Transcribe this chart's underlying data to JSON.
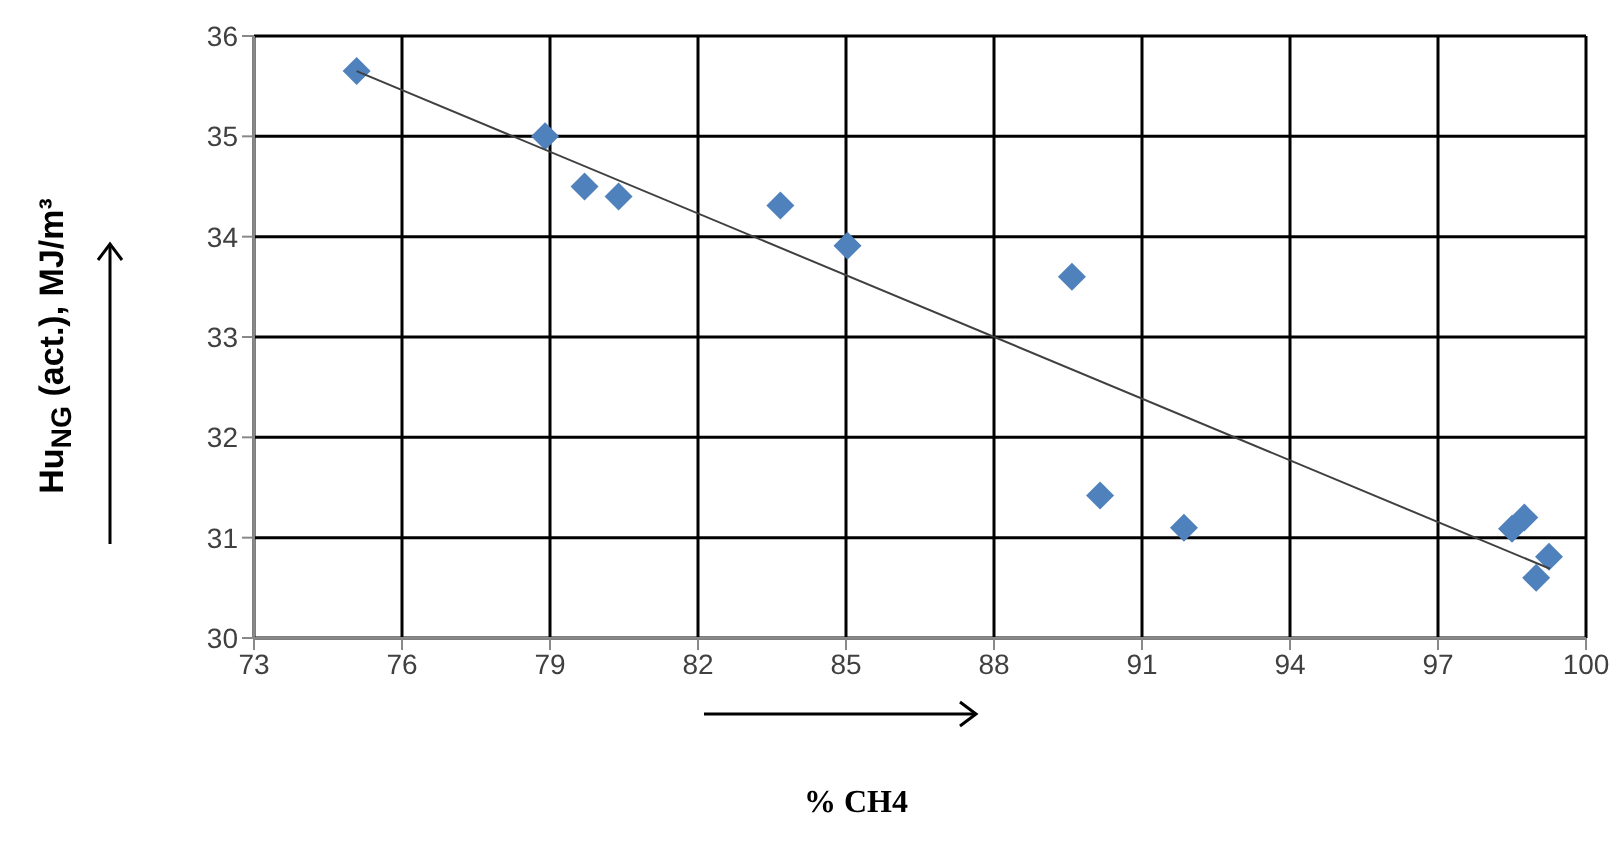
{
  "chart_data": {
    "type": "scatter",
    "xlabel": "% CH4",
    "ylabel": "Hu$_{NG}$ (act.), MJ/m³",
    "xlim": [
      73,
      100
    ],
    "xticks": [
      73,
      76,
      79,
      82,
      85,
      88,
      91,
      94,
      97,
      100
    ],
    "ylim": [
      30,
      36
    ],
    "yticks": [
      30,
      31,
      32,
      33,
      34,
      35,
      36
    ],
    "grid": true,
    "legend": false,
    "marker": "diamond",
    "series": [
      {
        "color": "#4f81bd",
        "x": [
          75.08,
          78.9,
          79.7,
          80.39,
          83.67,
          85.03,
          89.58,
          90.15,
          91.85,
          98.5,
          98.75,
          99.25,
          98.99
        ],
        "values": [
          35.65,
          35.0,
          34.5,
          34.4,
          34.31,
          33.91,
          33.6,
          31.42,
          31.1,
          31.09,
          31.2,
          30.81,
          30.6
        ]
      },
      {
        "type": "line",
        "color": "#404040",
        "marker": "none",
        "x": [
          75.08,
          99.27
        ],
        "values": [
          35.65,
          30.69
        ]
      }
    ]
  }
}
